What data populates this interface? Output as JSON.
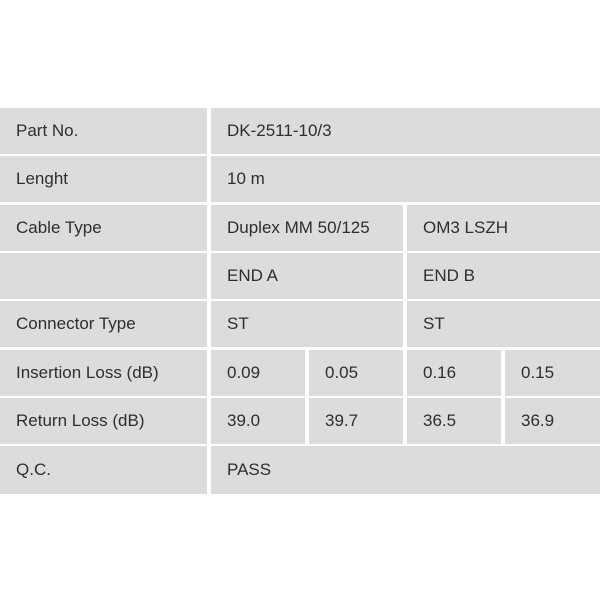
{
  "rows": {
    "part_no": {
      "label": "Part No.",
      "value": "DK-2511-10/3"
    },
    "length": {
      "label": "Lenght",
      "value": "10 m"
    },
    "cable_type": {
      "label": "Cable Type",
      "value_a": "Duplex MM 50/125",
      "value_b": "OM3 LSZH"
    },
    "ends": {
      "end_a": "END A",
      "end_b": "END B"
    },
    "connector_type": {
      "label": "Connector Type",
      "end_a": "ST",
      "end_b": "ST"
    },
    "insertion_loss": {
      "label": "Insertion Loss (dB)",
      "values": [
        "0.09",
        "0.05",
        "0.16",
        "0.15"
      ]
    },
    "return_loss": {
      "label": "Return Loss (dB)",
      "values": [
        "39.0",
        "39.7",
        "36.5",
        "36.9"
      ]
    },
    "qc": {
      "label": "Q.C.",
      "value": "PASS"
    }
  }
}
